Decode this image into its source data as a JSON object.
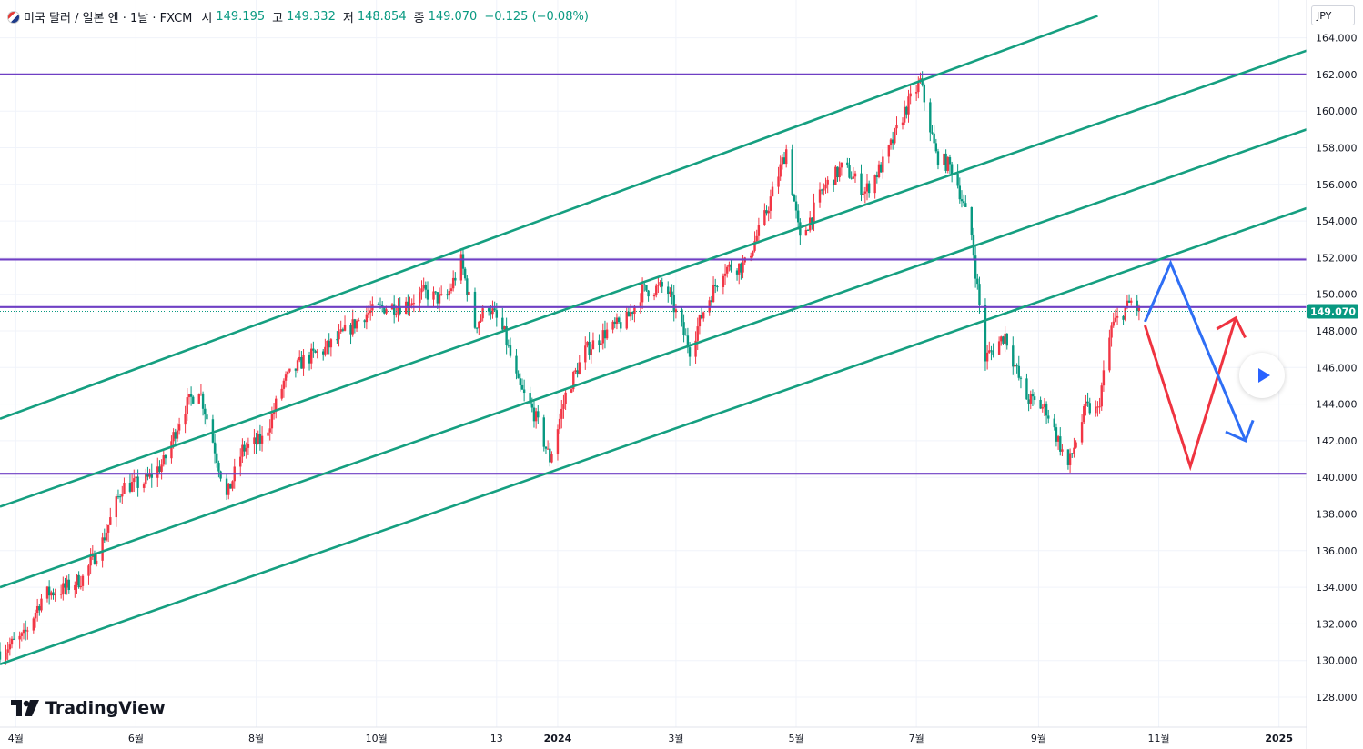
{
  "header": {
    "symbol": "미국 달러 / 일본 엔 · 1날 · FXCM",
    "open_label": "시",
    "open": "149.195",
    "high_label": "고",
    "high": "149.332",
    "low_label": "저",
    "low": "148.854",
    "close_label": "종",
    "close": "149.070",
    "change": "−0.125 (−0.08%)",
    "currency": "JPY",
    "flag_icon": "usd-jpy-flag-icon"
  },
  "brand": {
    "name": "TradingView",
    "logo_icon": "tradingview-logo-icon"
  },
  "controls": {
    "play_icon": "play-icon"
  },
  "colors": {
    "up": "#f23645",
    "down": "#089981",
    "channel": "#159f80",
    "level": "#6f3fc4",
    "price_tag": "#089981",
    "proj_red": "#ef3340",
    "proj_blue": "#2e6ef5",
    "grid": "#f0f3fa"
  },
  "chart_data": {
    "type": "candlestick",
    "title": "미국 달러 / 일본 엔 · 1날 · FXCM",
    "y_axis": {
      "min": 127.0,
      "max": 165.2,
      "ticks": [
        128,
        130,
        132,
        134,
        136,
        138,
        140,
        142,
        144,
        146,
        148,
        150,
        152,
        154,
        156,
        158,
        160,
        162,
        164
      ],
      "tick_labels": [
        "128.000",
        "130.000",
        "132.000",
        "134.000",
        "136.000",
        "138.000",
        "140.000",
        "142.000",
        "144.000",
        "146.000",
        "148.000",
        "150.000",
        "152.000",
        "154.000",
        "156.000",
        "158.000",
        "160.000",
        "162.000",
        "164.000"
      ]
    },
    "x_axis": {
      "start": "2023-03-24",
      "end": "2025-01-15",
      "ticks": [
        {
          "date": "2023-04-01",
          "label": "4월"
        },
        {
          "date": "2023-06-01",
          "label": "6월"
        },
        {
          "date": "2023-08-01",
          "label": "8월"
        },
        {
          "date": "2023-10-01",
          "label": "10월"
        },
        {
          "date": "2023-12-01",
          "label": "13"
        },
        {
          "date": "2024-01-01",
          "label": "2024"
        },
        {
          "date": "2024-03-01",
          "label": "3월"
        },
        {
          "date": "2024-05-01",
          "label": "5월"
        },
        {
          "date": "2024-07-01",
          "label": "7월"
        },
        {
          "date": "2024-09-01",
          "label": "9월"
        },
        {
          "date": "2024-11-01",
          "label": "11월"
        },
        {
          "date": "2025-01-01",
          "label": "2025"
        }
      ]
    },
    "last_price": 149.07,
    "last_price_label": "149.070",
    "price_path": [
      [
        "2023-03-24",
        130.5
      ],
      [
        "2023-04-05",
        131.3
      ],
      [
        "2023-04-15",
        133.6
      ],
      [
        "2023-04-25",
        133.9
      ],
      [
        "2023-05-05",
        134.5
      ],
      [
        "2023-05-15",
        136.5
      ],
      [
        "2023-05-25",
        139.5
      ],
      [
        "2023-06-05",
        139.7
      ],
      [
        "2023-06-15",
        140.8
      ],
      [
        "2023-06-25",
        143.7
      ],
      [
        "2023-07-03",
        144.9
      ],
      [
        "2023-07-10",
        142.0
      ],
      [
        "2023-07-17",
        138.9
      ],
      [
        "2023-07-25",
        141.5
      ],
      [
        "2023-08-05",
        142.1
      ],
      [
        "2023-08-15",
        145.2
      ],
      [
        "2023-08-25",
        146.4
      ],
      [
        "2023-09-05",
        147.0
      ],
      [
        "2023-09-15",
        147.9
      ],
      [
        "2023-09-25",
        148.9
      ],
      [
        "2023-10-05",
        149.3
      ],
      [
        "2023-10-15",
        149.4
      ],
      [
        "2023-10-25",
        150.1
      ],
      [
        "2023-11-05",
        149.6
      ],
      [
        "2023-11-13",
        151.8
      ],
      [
        "2023-11-20",
        148.3
      ],
      [
        "2023-11-27",
        149.4
      ],
      [
        "2023-12-05",
        147.8
      ],
      [
        "2023-12-12",
        145.0
      ],
      [
        "2023-12-20",
        143.5
      ],
      [
        "2023-12-28",
        141.0
      ],
      [
        "2024-01-05",
        144.5
      ],
      [
        "2024-01-15",
        146.9
      ],
      [
        "2024-01-25",
        147.9
      ],
      [
        "2024-02-05",
        148.6
      ],
      [
        "2024-02-13",
        150.2
      ],
      [
        "2024-02-25",
        150.4
      ],
      [
        "2024-03-08",
        147.0
      ],
      [
        "2024-03-15",
        149.1
      ],
      [
        "2024-03-25",
        151.4
      ],
      [
        "2024-04-05",
        151.6
      ],
      [
        "2024-04-15",
        154.2
      ],
      [
        "2024-04-26",
        157.9
      ],
      [
        "2024-05-03",
        152.9
      ],
      [
        "2024-05-15",
        155.8
      ],
      [
        "2024-05-25",
        157.0
      ],
      [
        "2024-06-05",
        155.6
      ],
      [
        "2024-06-15",
        157.3
      ],
      [
        "2024-06-25",
        160.0
      ],
      [
        "2024-07-03",
        161.6
      ],
      [
        "2024-07-11",
        157.6
      ],
      [
        "2024-07-20",
        156.8
      ],
      [
        "2024-07-29",
        153.2
      ],
      [
        "2024-08-05",
        146.5
      ],
      [
        "2024-08-15",
        147.8
      ],
      [
        "2024-08-25",
        144.4
      ],
      [
        "2024-09-05",
        143.7
      ],
      [
        "2024-09-16",
        140.6
      ],
      [
        "2024-09-25",
        143.8
      ],
      [
        "2024-10-01",
        143.6
      ],
      [
        "2024-10-08",
        148.2
      ],
      [
        "2024-10-18",
        149.6
      ],
      [
        "2024-10-22",
        149.07
      ]
    ],
    "horizontal_levels": [
      162.0,
      151.9,
      149.3,
      140.2
    ],
    "channel_lines": [
      {
        "from": [
          "2023-03-24",
          143.2
        ],
        "to": [
          "2024-10-01",
          165.2
        ]
      },
      {
        "from": [
          "2023-03-24",
          138.4
        ],
        "to": [
          "2025-01-15",
          163.3
        ]
      },
      {
        "from": [
          "2023-03-24",
          134.0
        ],
        "to": [
          "2025-01-15",
          159.0
        ]
      },
      {
        "from": [
          "2023-03-24",
          129.8
        ],
        "to": [
          "2025-01-15",
          154.7
        ]
      }
    ],
    "projections": [
      {
        "color": "red",
        "points": [
          [
            "2024-10-25",
            148.3
          ],
          [
            "2024-11-17",
            140.6
          ],
          [
            "2024-12-10",
            148.7
          ]
        ]
      },
      {
        "color": "blue",
        "points": [
          [
            "2024-10-25",
            148.5
          ],
          [
            "2024-11-07",
            151.7
          ],
          [
            "2024-12-15",
            142.0
          ]
        ]
      }
    ]
  }
}
